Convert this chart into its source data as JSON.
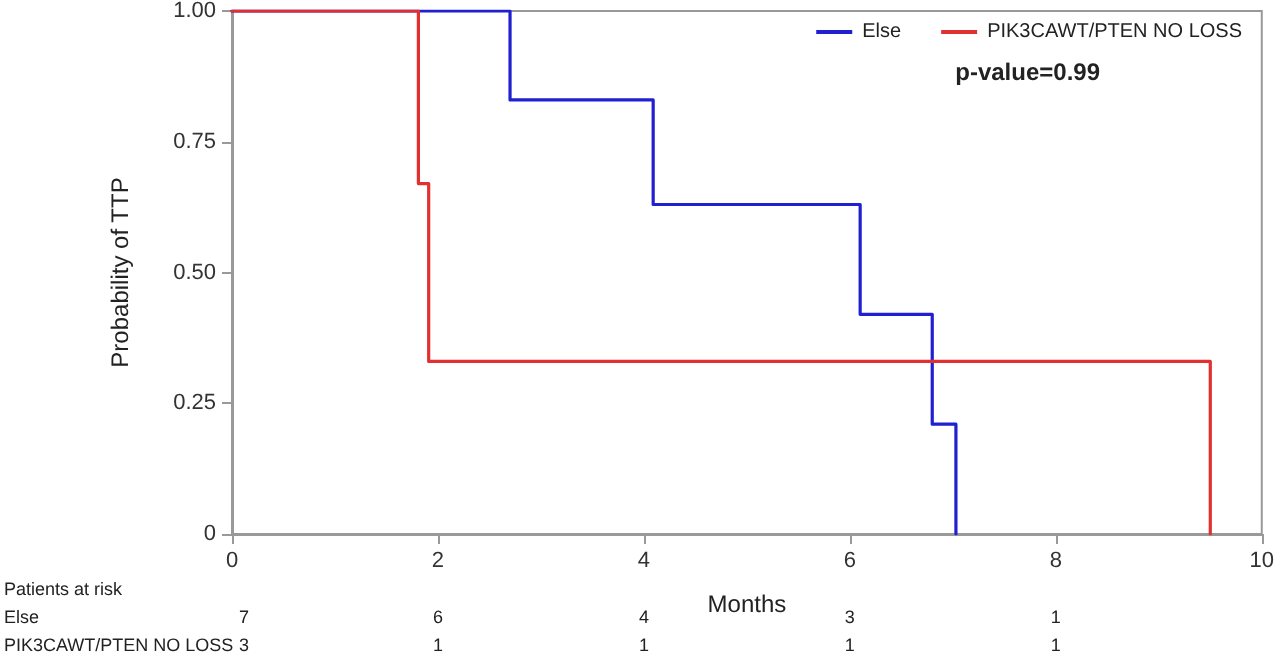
{
  "chart_data": {
    "type": "step",
    "xlabel": "Months",
    "ylabel": "Probability of TTP",
    "series": [
      {
        "name": "Else",
        "color": "#2020d0",
        "x": [
          0,
          2.7,
          4.09,
          6.1,
          6.8,
          7.03
        ],
        "values": [
          1,
          0.83,
          0.63,
          0.42,
          0.21,
          0
        ]
      },
      {
        "name": "PIK3CAWT/PTEN NO LOSS",
        "color": "#e03030",
        "x": [
          0,
          1.81,
          1.91,
          9.5
        ],
        "values": [
          1,
          0.67,
          0.33,
          0
        ]
      }
    ],
    "xlim": [
      0,
      10
    ],
    "xticks": [
      0,
      2,
      4,
      6,
      8,
      10
    ],
    "ylim": [
      0,
      1
    ],
    "yticks": [
      0,
      0.25,
      {
        "value": 0.5,
        "label": "0.50"
      },
      {
        "value": 0.75,
        "label": "0.75"
      },
      {
        "value": 1,
        "label": "1.00"
      }
    ],
    "annotations": [
      "p-value=0.99",
      "Patients at risk",
      "Else",
      "7",
      "6",
      "4",
      "3",
      "1",
      "PIK3CAWT/PTEN NO LOSS",
      "3",
      "1",
      "1",
      "1",
      "1"
    ],
    "grid": false,
    "legend": "top right",
    "marker": "none",
    "line_style": "solid"
  }
}
